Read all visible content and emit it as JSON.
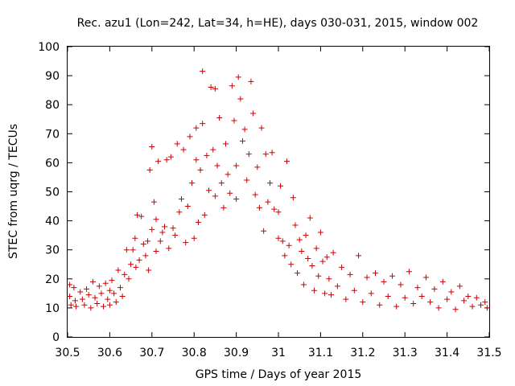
{
  "chart_data": {
    "type": "scatter",
    "title": "Rec. azu1 (Lon=242, Lat=34, h=HE), days 030-031, 2015, window 002",
    "xlabel": "GPS time / Days of year 2015",
    "ylabel": "STEC from uqrg / TECUs",
    "xlim": [
      30.5,
      31.5
    ],
    "ylim": [
      0,
      100
    ],
    "xticks": [
      30.5,
      30.6,
      30.7,
      30.8,
      30.9,
      31.0,
      31.1,
      31.2,
      31.3,
      31.4,
      31.5
    ],
    "xtick_labels": [
      "30.5",
      "30.6",
      "30.7",
      "30.8",
      "30.9",
      "31",
      "31.1",
      "31.2",
      "31.3",
      "31.4",
      "31.5"
    ],
    "yticks": [
      0,
      10,
      20,
      30,
      40,
      50,
      60,
      70,
      80,
      90,
      100
    ],
    "ytick_labels": [
      "0",
      "10",
      "20",
      "30",
      "40",
      "50",
      "60",
      "70",
      "80",
      "90",
      "100"
    ],
    "grid": false,
    "marker": "+",
    "color": "#cc0000",
    "series": [
      {
        "name": "STEC",
        "points": [
          [
            30.505,
            18.0
          ],
          [
            30.505,
            14.0
          ],
          [
            30.508,
            11.0
          ],
          [
            30.515,
            17.0
          ],
          [
            30.518,
            12.5
          ],
          [
            30.52,
            10.5
          ],
          [
            30.53,
            15.5
          ],
          [
            30.535,
            13.0
          ],
          [
            30.54,
            11.0
          ],
          [
            30.545,
            16.5
          ],
          [
            30.55,
            14.5
          ],
          [
            30.555,
            10.0
          ],
          [
            30.56,
            19.0
          ],
          [
            30.565,
            13.5
          ],
          [
            30.57,
            11.5
          ],
          [
            30.575,
            17.5
          ],
          [
            30.58,
            15.0
          ],
          [
            30.585,
            10.5
          ],
          [
            30.59,
            18.5
          ],
          [
            30.595,
            13.0
          ],
          [
            30.6,
            11.0
          ],
          [
            30.6,
            16.0
          ],
          [
            30.605,
            19.5
          ],
          [
            30.61,
            15.0
          ],
          [
            30.615,
            12.0
          ],
          [
            30.62,
            23.0
          ],
          [
            30.625,
            17.0
          ],
          [
            30.63,
            14.0
          ],
          [
            30.635,
            21.5
          ],
          [
            30.64,
            30.0
          ],
          [
            30.645,
            20.0
          ],
          [
            30.65,
            25.0
          ],
          [
            30.655,
            30.0
          ],
          [
            30.66,
            34.0
          ],
          [
            30.662,
            24.0
          ],
          [
            30.665,
            42.0
          ],
          [
            30.67,
            26.5
          ],
          [
            30.675,
            41.5
          ],
          [
            30.68,
            32.0
          ],
          [
            30.685,
            28.0
          ],
          [
            30.69,
            33.0
          ],
          [
            30.692,
            23.0
          ],
          [
            30.695,
            57.5
          ],
          [
            30.7,
            37.0
          ],
          [
            30.7,
            65.5
          ],
          [
            30.705,
            46.5
          ],
          [
            30.71,
            40.5
          ],
          [
            30.71,
            29.5
          ],
          [
            30.715,
            60.5
          ],
          [
            30.72,
            33.0
          ],
          [
            30.725,
            36.0
          ],
          [
            30.73,
            38.0
          ],
          [
            30.735,
            61.0
          ],
          [
            30.74,
            30.5
          ],
          [
            30.745,
            62.0
          ],
          [
            30.75,
            37.5
          ],
          [
            30.755,
            35.0
          ],
          [
            30.76,
            66.5
          ],
          [
            30.765,
            43.0
          ],
          [
            30.77,
            47.5
          ],
          [
            30.775,
            64.5
          ],
          [
            30.78,
            32.5
          ],
          [
            30.785,
            45.0
          ],
          [
            30.79,
            69.0
          ],
          [
            30.795,
            53.0
          ],
          [
            30.8,
            34.0
          ],
          [
            30.805,
            61.0
          ],
          [
            30.805,
            72.0
          ],
          [
            30.81,
            39.5
          ],
          [
            30.815,
            57.5
          ],
          [
            30.82,
            91.5
          ],
          [
            30.82,
            73.5
          ],
          [
            30.825,
            42.0
          ],
          [
            30.83,
            62.5
          ],
          [
            30.835,
            50.5
          ],
          [
            30.84,
            86.0
          ],
          [
            30.845,
            64.5
          ],
          [
            30.85,
            48.5
          ],
          [
            30.85,
            85.5
          ],
          [
            30.855,
            59.0
          ],
          [
            30.86,
            75.5
          ],
          [
            30.865,
            53.0
          ],
          [
            30.87,
            44.5
          ],
          [
            30.875,
            66.5
          ],
          [
            30.88,
            56.0
          ],
          [
            30.885,
            49.5
          ],
          [
            30.89,
            86.5
          ],
          [
            30.895,
            74.5
          ],
          [
            30.9,
            59.0
          ],
          [
            30.9,
            47.5
          ],
          [
            30.905,
            89.5
          ],
          [
            30.91,
            82.0
          ],
          [
            30.915,
            67.5
          ],
          [
            30.92,
            71.5
          ],
          [
            30.925,
            54.0
          ],
          [
            30.93,
            63.0
          ],
          [
            30.935,
            88.0
          ],
          [
            30.94,
            77.0
          ],
          [
            30.945,
            49.0
          ],
          [
            30.95,
            58.5
          ],
          [
            30.955,
            44.5
          ],
          [
            30.96,
            72.0
          ],
          [
            30.965,
            36.5
          ],
          [
            30.97,
            63.0
          ],
          [
            30.975,
            46.5
          ],
          [
            30.98,
            53.0
          ],
          [
            30.985,
            63.5
          ],
          [
            30.99,
            44.0
          ],
          [
            31.0,
            43.0
          ],
          [
            31.0,
            34.0
          ],
          [
            31.005,
            52.0
          ],
          [
            31.01,
            33.0
          ],
          [
            31.015,
            28.0
          ],
          [
            31.02,
            60.5
          ],
          [
            31.025,
            31.5
          ],
          [
            31.03,
            25.0
          ],
          [
            31.035,
            48.0
          ],
          [
            31.04,
            38.5
          ],
          [
            31.045,
            22.0
          ],
          [
            31.05,
            33.5
          ],
          [
            31.055,
            29.5
          ],
          [
            31.06,
            18.0
          ],
          [
            31.065,
            35.0
          ],
          [
            31.07,
            27.0
          ],
          [
            31.075,
            41.0
          ],
          [
            31.08,
            24.5
          ],
          [
            31.085,
            16.0
          ],
          [
            31.09,
            30.5
          ],
          [
            31.095,
            21.0
          ],
          [
            31.1,
            36.0
          ],
          [
            31.105,
            26.0
          ],
          [
            31.11,
            15.0
          ],
          [
            31.115,
            27.5
          ],
          [
            31.12,
            20.0
          ],
          [
            31.125,
            14.5
          ],
          [
            31.13,
            29.0
          ],
          [
            31.14,
            17.5
          ],
          [
            31.15,
            24.0
          ],
          [
            31.16,
            13.0
          ],
          [
            31.17,
            21.5
          ],
          [
            31.18,
            16.0
          ],
          [
            31.19,
            28.0
          ],
          [
            31.2,
            12.0
          ],
          [
            31.21,
            20.5
          ],
          [
            31.22,
            15.0
          ],
          [
            31.23,
            22.0
          ],
          [
            31.24,
            11.0
          ],
          [
            31.25,
            19.0
          ],
          [
            31.26,
            14.0
          ],
          [
            31.27,
            21.0
          ],
          [
            31.28,
            10.5
          ],
          [
            31.29,
            18.0
          ],
          [
            31.3,
            13.5
          ],
          [
            31.31,
            22.5
          ],
          [
            31.32,
            11.5
          ],
          [
            31.33,
            17.0
          ],
          [
            31.34,
            14.0
          ],
          [
            31.35,
            20.5
          ],
          [
            31.36,
            12.0
          ],
          [
            31.37,
            16.5
          ],
          [
            31.38,
            10.0
          ],
          [
            31.39,
            19.0
          ],
          [
            31.4,
            13.0
          ],
          [
            31.41,
            15.5
          ],
          [
            31.42,
            9.5
          ],
          [
            31.43,
            17.5
          ],
          [
            31.44,
            12.5
          ],
          [
            31.45,
            14.0
          ],
          [
            31.46,
            10.5
          ],
          [
            31.47,
            13.5
          ],
          [
            31.48,
            11.0
          ],
          [
            31.49,
            12.0
          ],
          [
            31.495,
            10.0
          ]
        ]
      }
    ]
  }
}
